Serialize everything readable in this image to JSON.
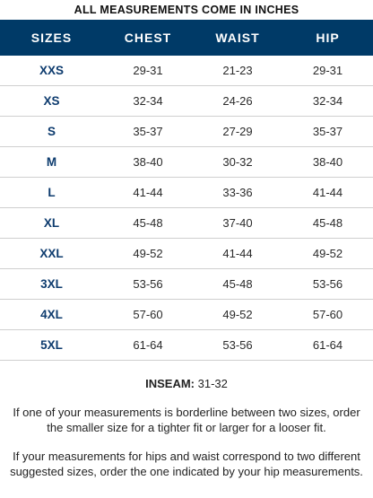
{
  "heading": "ALL MEASUREMENTS COME IN INCHES",
  "table": {
    "headers": [
      "SIZES",
      "CHEST",
      "WAIST",
      "HIP"
    ],
    "rows": [
      [
        "XXS",
        "29-31",
        "21-23",
        "29-31"
      ],
      [
        "XS",
        "32-34",
        "24-26",
        "32-34"
      ],
      [
        "S",
        "35-37",
        "27-29",
        "35-37"
      ],
      [
        "M",
        "38-40",
        "30-32",
        "38-40"
      ],
      [
        "L",
        "41-44",
        "33-36",
        "41-44"
      ],
      [
        "XL",
        "45-48",
        "37-40",
        "45-48"
      ],
      [
        "XXL",
        "49-52",
        "41-44",
        "49-52"
      ],
      [
        "3XL",
        "53-56",
        "45-48",
        "53-56"
      ],
      [
        "4XL",
        "57-60",
        "49-52",
        "57-60"
      ],
      [
        "5XL",
        "61-64",
        "53-56",
        "61-64"
      ]
    ]
  },
  "inseam": {
    "label": "INSEAM:",
    "value": "31-32"
  },
  "notes": [
    "If one of your measurements is borderline between two sizes, order the smaller size for a tighter fit or larger for a looser fit.",
    "If your measurements for hips and waist correspond to two different suggested sizes, order the one indicated by your hip measurements."
  ],
  "colors": {
    "header_background": "#003a67",
    "header_text": "#ffffff",
    "size_text": "#0d3b6e",
    "row_divider": "#cfcfcf"
  }
}
